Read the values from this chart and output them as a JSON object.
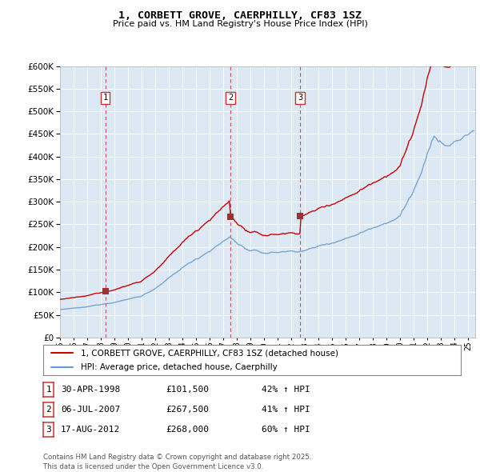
{
  "title": "1, CORBETT GROVE, CAERPHILLY, CF83 1SZ",
  "subtitle": "Price paid vs. HM Land Registry's House Price Index (HPI)",
  "plot_bg_color": "#dce9f5",
  "ylim": [
    0,
    600000
  ],
  "yticks": [
    0,
    50000,
    100000,
    150000,
    200000,
    250000,
    300000,
    350000,
    400000,
    450000,
    500000,
    550000,
    600000
  ],
  "legend_entries": [
    "1, CORBETT GROVE, CAERPHILLY, CF83 1SZ (detached house)",
    "HPI: Average price, detached house, Caerphilly"
  ],
  "legend_colors": [
    "#cc0000",
    "#6699cc"
  ],
  "transactions": [
    {
      "num": 1,
      "date": "30-APR-1998",
      "price": 101500,
      "year": 1998.33,
      "hpi_pct": "42% ↑ HPI"
    },
    {
      "num": 2,
      "date": "06-JUL-2007",
      "price": 267500,
      "year": 2007.51,
      "hpi_pct": "41% ↑ HPI"
    },
    {
      "num": 3,
      "date": "17-AUG-2012",
      "price": 268000,
      "year": 2012.63,
      "hpi_pct": "60% ↑ HPI"
    }
  ],
  "footer": "Contains HM Land Registry data © Crown copyright and database right 2025.\nThis data is licensed under the Open Government Licence v3.0.",
  "red_line_color": "#cc0000",
  "blue_line_color": "#6699cc",
  "marker_color": "#993333",
  "vline_color": "#cc3333",
  "xstart": 1995,
  "xend": 2025.5
}
